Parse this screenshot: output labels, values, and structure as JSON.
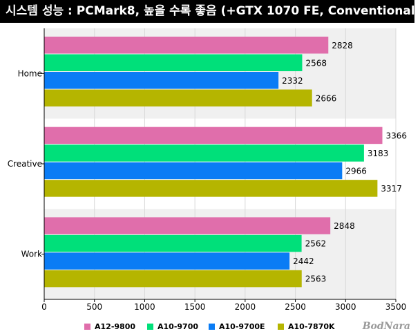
{
  "title": "시스템 성능 : PCMark8, 높을 수록 좋음 (+GTX 1070 FE, Conventional)",
  "watermark": "BodNara",
  "chart_data": {
    "type": "bar",
    "orientation": "horizontal",
    "categories": [
      "Home",
      "Creative",
      "Work"
    ],
    "series": [
      {
        "name": "A12-9800",
        "color": "#e06eab",
        "values": [
          2828,
          3366,
          2848
        ]
      },
      {
        "name": "A10-9700",
        "color": "#00e07a",
        "values": [
          2568,
          3183,
          2562
        ]
      },
      {
        "name": "A10-9700E",
        "color": "#0a7cf5",
        "values": [
          2332,
          2966,
          2442
        ]
      },
      {
        "name": "A10-7870K",
        "color": "#b5b500",
        "values": [
          2666,
          3317,
          2563
        ]
      }
    ],
    "xlim": [
      0,
      3500
    ],
    "xticks": [
      0,
      500,
      1000,
      1500,
      2000,
      2500,
      3000,
      3500
    ],
    "grid": true,
    "legend_position": "bottom"
  }
}
